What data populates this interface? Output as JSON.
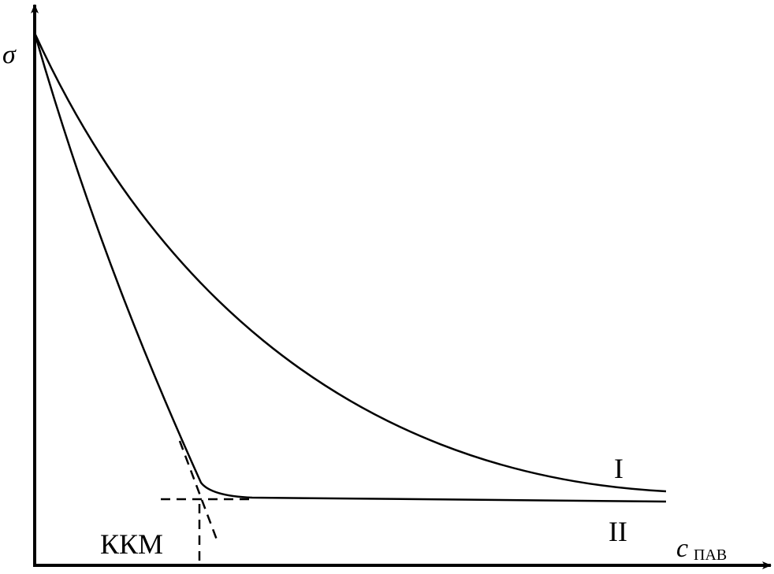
{
  "axes": {
    "y_label": "σ",
    "x_label": "c",
    "x_label_subscript": "ПАВ"
  },
  "annotations": {
    "cmc": "ККМ",
    "curve_1": "I",
    "curve_2": "II"
  }
}
